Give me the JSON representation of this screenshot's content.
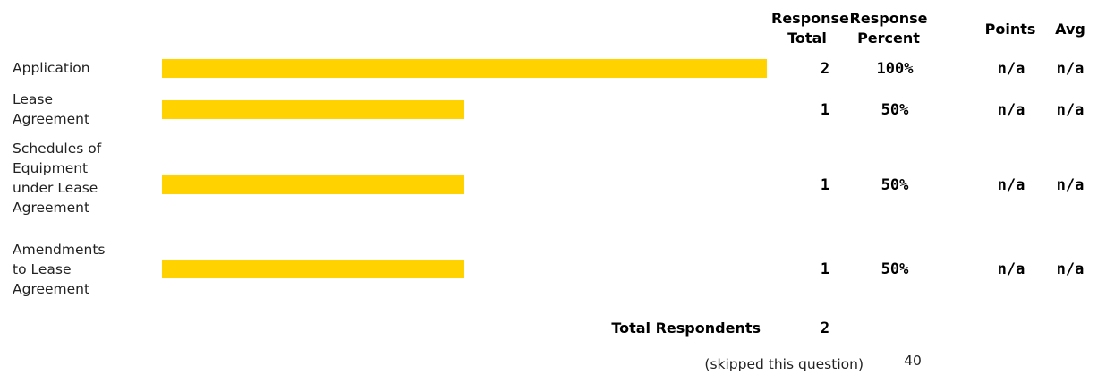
{
  "columns": {
    "response_total": "Response Total",
    "response_percent": "Response Percent",
    "points": "Points",
    "avg": "Avg"
  },
  "colors": {
    "bar": "#ffd200"
  },
  "chart_data": {
    "type": "bar",
    "orientation": "horizontal",
    "title": "",
    "xlabel": "",
    "ylabel": "",
    "xlim": [
      0,
      100
    ],
    "categories": [
      "Application",
      "Lease Agreement",
      "Schedules of Equipment under Lease Agreement",
      "Amendments to Lease Agreement"
    ],
    "values": [
      100,
      50,
      50,
      50
    ],
    "rows": [
      {
        "label": "Application",
        "total": "2",
        "percent": "100%",
        "points": "n/a",
        "avg": "n/a"
      },
      {
        "label": "Lease Agreement",
        "total": "1",
        "percent": "50%",
        "points": "n/a",
        "avg": "n/a"
      },
      {
        "label": "Schedules of Equipment under Lease Agreement",
        "total": "1",
        "percent": "50%",
        "points": "n/a",
        "avg": "n/a"
      },
      {
        "label": "Amendments to Lease Agreement",
        "total": "1",
        "percent": "50%",
        "points": "n/a",
        "avg": "n/a"
      }
    ]
  },
  "footer": {
    "total_respondents_label": "Total Respondents",
    "total_respondents_value": "2",
    "skipped_label": "(skipped this question)",
    "skipped_value": "40"
  }
}
